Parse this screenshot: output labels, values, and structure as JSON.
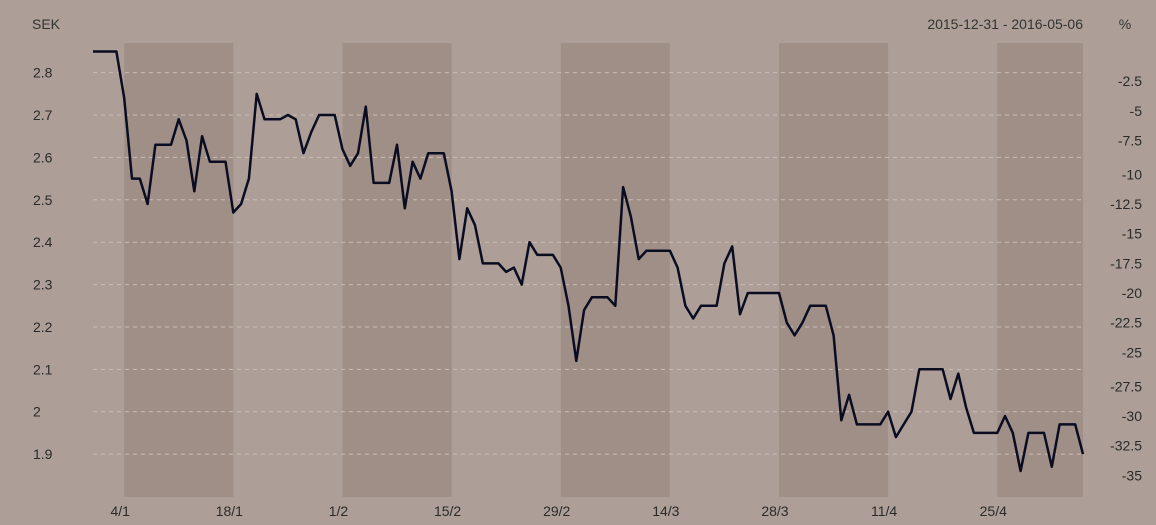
{
  "header": {
    "currency": "SEK",
    "date_range": "2015-12-31 - 2016-05-06",
    "percent_symbol": "%"
  },
  "colors": {
    "background": "#ad9f97",
    "band": "#9f8f87",
    "line": "#0a0d22",
    "grid": "#c9bdb6"
  },
  "chart_data": {
    "type": "line",
    "title": "",
    "ylabel_left": "SEK",
    "ylabel_right": "%",
    "ylim": [
      1.82,
      2.87
    ],
    "y_ticks_left": [
      1.9,
      2,
      2.1,
      2.2,
      2.3,
      2.4,
      2.5,
      2.6,
      2.7,
      2.8
    ],
    "y_ticks_right": [
      "-2.5",
      "-5",
      "-7.5",
      "-10",
      "-12.5",
      "-15",
      "-17.5",
      "-20",
      "-22.5",
      "-25",
      "-27.5",
      "-30",
      "-32.5",
      "-35"
    ],
    "y_ticks_right_values": [
      2.78,
      2.71,
      2.64,
      2.56,
      2.49,
      2.42,
      2.35,
      2.28,
      2.21,
      2.14,
      2.06,
      1.99,
      1.92,
      1.85
    ],
    "x_ticks": [
      "4/1",
      "18/1",
      "1/2",
      "15/2",
      "29/2",
      "14/3",
      "28/3",
      "11/4",
      "25/4"
    ],
    "x_tick_dates": [
      "2016-01-04",
      "2016-01-18",
      "2016-02-01",
      "2016-02-15",
      "2016-02-29",
      "2016-03-14",
      "2016-03-28",
      "2016-04-11",
      "2016-04-25"
    ],
    "x_range": [
      "2015-12-31",
      "2016-05-06"
    ],
    "shaded_periods": [
      [
        "2016-01-04",
        "2016-01-18"
      ],
      [
        "2016-02-01",
        "2016-02-15"
      ],
      [
        "2016-02-29",
        "2016-03-14"
      ],
      [
        "2016-03-28",
        "2016-04-11"
      ],
      [
        "2016-04-25",
        "2016-05-06"
      ]
    ],
    "grid": true,
    "series": [
      {
        "values": [
          [
            "2015-12-31",
            2.85
          ],
          [
            "2016-01-01",
            2.85
          ],
          [
            "2016-01-03",
            2.85
          ],
          [
            "2016-01-04",
            2.74
          ],
          [
            "2016-01-05",
            2.55
          ],
          [
            "2016-01-06",
            2.55
          ],
          [
            "2016-01-07",
            2.49
          ],
          [
            "2016-01-08",
            2.63
          ],
          [
            "2016-01-10",
            2.63
          ],
          [
            "2016-01-11",
            2.69
          ],
          [
            "2016-01-12",
            2.64
          ],
          [
            "2016-01-13",
            2.52
          ],
          [
            "2016-01-14",
            2.65
          ],
          [
            "2016-01-15",
            2.59
          ],
          [
            "2016-01-17",
            2.59
          ],
          [
            "2016-01-18",
            2.47
          ],
          [
            "2016-01-19",
            2.49
          ],
          [
            "2016-01-20",
            2.55
          ],
          [
            "2016-01-21",
            2.75
          ],
          [
            "2016-01-22",
            2.69
          ],
          [
            "2016-01-24",
            2.69
          ],
          [
            "2016-01-25",
            2.7
          ],
          [
            "2016-01-26",
            2.69
          ],
          [
            "2016-01-27",
            2.61
          ],
          [
            "2016-01-28",
            2.66
          ],
          [
            "2016-01-29",
            2.7
          ],
          [
            "2016-01-31",
            2.7
          ],
          [
            "2016-02-01",
            2.62
          ],
          [
            "2016-02-02",
            2.58
          ],
          [
            "2016-02-03",
            2.61
          ],
          [
            "2016-02-04",
            2.72
          ],
          [
            "2016-02-05",
            2.54
          ],
          [
            "2016-02-07",
            2.54
          ],
          [
            "2016-02-08",
            2.63
          ],
          [
            "2016-02-09",
            2.48
          ],
          [
            "2016-02-10",
            2.59
          ],
          [
            "2016-02-11",
            2.55
          ],
          [
            "2016-02-12",
            2.61
          ],
          [
            "2016-02-14",
            2.61
          ],
          [
            "2016-02-15",
            2.52
          ],
          [
            "2016-02-16",
            2.36
          ],
          [
            "2016-02-17",
            2.48
          ],
          [
            "2016-02-18",
            2.44
          ],
          [
            "2016-02-19",
            2.35
          ],
          [
            "2016-02-21",
            2.35
          ],
          [
            "2016-02-22",
            2.33
          ],
          [
            "2016-02-23",
            2.34
          ],
          [
            "2016-02-24",
            2.3
          ],
          [
            "2016-02-25",
            2.4
          ],
          [
            "2016-02-26",
            2.37
          ],
          [
            "2016-02-28",
            2.37
          ],
          [
            "2016-02-29",
            2.34
          ],
          [
            "2016-03-01",
            2.25
          ],
          [
            "2016-03-02",
            2.12
          ],
          [
            "2016-03-03",
            2.24
          ],
          [
            "2016-03-04",
            2.27
          ],
          [
            "2016-03-06",
            2.27
          ],
          [
            "2016-03-07",
            2.25
          ],
          [
            "2016-03-08",
            2.53
          ],
          [
            "2016-03-09",
            2.46
          ],
          [
            "2016-03-10",
            2.36
          ],
          [
            "2016-03-11",
            2.38
          ],
          [
            "2016-03-13",
            2.38
          ],
          [
            "2016-03-14",
            2.38
          ],
          [
            "2016-03-15",
            2.34
          ],
          [
            "2016-03-16",
            2.25
          ],
          [
            "2016-03-17",
            2.22
          ],
          [
            "2016-03-18",
            2.25
          ],
          [
            "2016-03-20",
            2.25
          ],
          [
            "2016-03-21",
            2.35
          ],
          [
            "2016-03-22",
            2.39
          ],
          [
            "2016-03-23",
            2.23
          ],
          [
            "2016-03-24",
            2.28
          ],
          [
            "2016-03-25",
            2.28
          ],
          [
            "2016-03-27",
            2.28
          ],
          [
            "2016-03-28",
            2.28
          ],
          [
            "2016-03-29",
            2.21
          ],
          [
            "2016-03-30",
            2.18
          ],
          [
            "2016-03-31",
            2.21
          ],
          [
            "2016-04-01",
            2.25
          ],
          [
            "2016-04-03",
            2.25
          ],
          [
            "2016-04-04",
            2.18
          ],
          [
            "2016-04-05",
            1.98
          ],
          [
            "2016-04-06",
            2.04
          ],
          [
            "2016-04-07",
            1.97
          ],
          [
            "2016-04-08",
            1.97
          ],
          [
            "2016-04-10",
            1.97
          ],
          [
            "2016-04-11",
            2.0
          ],
          [
            "2016-04-12",
            1.94
          ],
          [
            "2016-04-13",
            1.97
          ],
          [
            "2016-04-14",
            2.0
          ],
          [
            "2016-04-15",
            2.1
          ],
          [
            "2016-04-17",
            2.1
          ],
          [
            "2016-04-18",
            2.1
          ],
          [
            "2016-04-19",
            2.03
          ],
          [
            "2016-04-20",
            2.09
          ],
          [
            "2016-04-21",
            2.01
          ],
          [
            "2016-04-22",
            1.95
          ],
          [
            "2016-04-24",
            1.95
          ],
          [
            "2016-04-25",
            1.95
          ],
          [
            "2016-04-26",
            1.99
          ],
          [
            "2016-04-27",
            1.95
          ],
          [
            "2016-04-28",
            1.86
          ],
          [
            "2016-04-29",
            1.95
          ],
          [
            "2016-05-01",
            1.95
          ],
          [
            "2016-05-02",
            1.87
          ],
          [
            "2016-05-03",
            1.97
          ],
          [
            "2016-05-04",
            1.97
          ],
          [
            "2016-05-05",
            1.97
          ],
          [
            "2016-05-06",
            1.9
          ]
        ]
      }
    ]
  }
}
